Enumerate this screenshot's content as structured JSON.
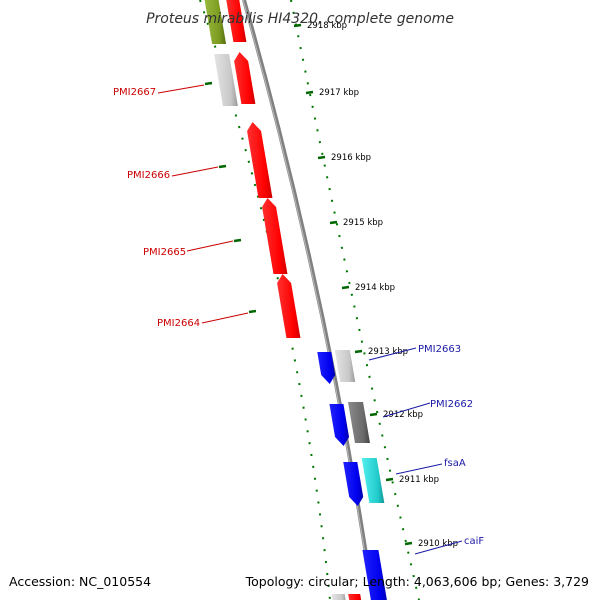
{
  "title": "Proteus mirabilis HI4320, complete genome",
  "footer": {
    "accession": "Accession: NC_010554",
    "summary": "Topology: circular; Length: 4,063,606 bp; Genes: 3,729"
  },
  "ticks": [
    "2918 kbp",
    "2917 kbp",
    "2916 kbp",
    "2915 kbp",
    "2914 kbp",
    "2913 kbp",
    "2912 kbp",
    "2911 kbp",
    "2910 kbp"
  ],
  "gene_labels": {
    "left": [
      "PMI2667",
      "PMI2666",
      "PMI2665",
      "PMI2664"
    ],
    "right": [
      "PMI2663",
      "PMI2662",
      "fsaA",
      "caiF"
    ]
  },
  "colors": {
    "forward_gene": "#ff0000",
    "reverse_gene": "#0000ee",
    "unknown_gene": "#c8c8c8",
    "dark_gene": "#707070",
    "cyan_gene": "#20cccc",
    "olive_gene": "#7a9a20",
    "backbone": "#888888",
    "tick_mark": "#006600"
  }
}
